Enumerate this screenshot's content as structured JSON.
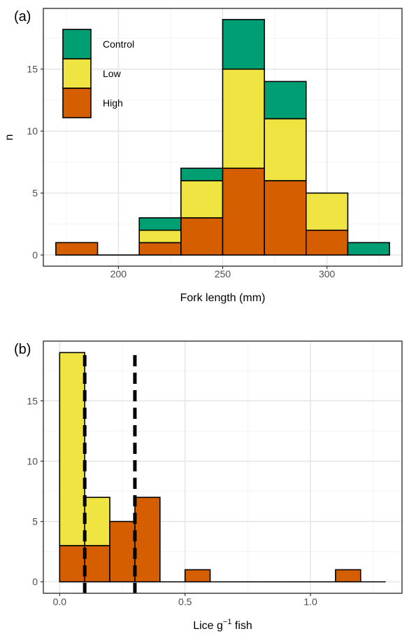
{
  "colors": {
    "Control": "#009E73",
    "Low": "#F0E442",
    "High": "#D55E00"
  },
  "chart_data": [
    {
      "type": "bar",
      "panel_label": "(a)",
      "xlabel": "Fork length (mm)",
      "ylabel": "n",
      "xlim": [
        164,
        336
      ],
      "ylim": [
        -0.9,
        19.9
      ],
      "xticks": [
        200,
        250,
        300
      ],
      "xticks_minor": [
        175,
        225,
        275,
        325
      ],
      "yticks": [
        0,
        5,
        10,
        15
      ],
      "yticks_minor": [
        2.5,
        7.5,
        12.5,
        17.5
      ],
      "legend": {
        "position": "top-left",
        "entries": [
          "Control",
          "Low",
          "High"
        ]
      },
      "bins": [
        {
          "x0": 170,
          "x1": 190,
          "High": 1,
          "Low": 0,
          "Control": 0
        },
        {
          "x0": 190,
          "x1": 210,
          "High": 0,
          "Low": 0,
          "Control": 0
        },
        {
          "x0": 210,
          "x1": 230,
          "High": 1,
          "Low": 1,
          "Control": 1
        },
        {
          "x0": 230,
          "x1": 250,
          "High": 3,
          "Low": 3,
          "Control": 1
        },
        {
          "x0": 250,
          "x1": 270,
          "High": 7,
          "Low": 8,
          "Control": 4
        },
        {
          "x0": 270,
          "x1": 290,
          "High": 6,
          "Low": 5,
          "Control": 3
        },
        {
          "x0": 290,
          "x1": 310,
          "High": 2,
          "Low": 3,
          "Control": 0
        },
        {
          "x0": 310,
          "x1": 330,
          "High": 0,
          "Low": 0,
          "Control": 1
        }
      ]
    },
    {
      "type": "bar",
      "panel_label": "(b)",
      "xlabel": "Lice g",
      "xlabel_superscript": "−1",
      "xlabel_suffix": " fish",
      "ylabel": "",
      "xlim": [
        -0.065,
        1.365
      ],
      "ylim": [
        -0.95,
        19.95
      ],
      "xticks": [
        0.0,
        0.5,
        1.0
      ],
      "xtick_labels": [
        "0.0",
        "0.5",
        "1.0"
      ],
      "xticks_minor": [
        0.25,
        0.75,
        1.25
      ],
      "yticks": [
        0,
        5,
        10,
        15
      ],
      "yticks_minor": [
        2.5,
        7.5,
        12.5,
        17.5
      ],
      "vlines": [
        0.1,
        0.3
      ],
      "bins": [
        {
          "x0": 0.0,
          "x1": 0.1,
          "High": 3,
          "Low": 16
        },
        {
          "x0": 0.1,
          "x1": 0.2,
          "High": 3,
          "Low": 4
        },
        {
          "x0": 0.2,
          "x1": 0.3,
          "High": 5,
          "Low": 0
        },
        {
          "x0": 0.3,
          "x1": 0.4,
          "High": 7,
          "Low": 0
        },
        {
          "x0": 0.4,
          "x1": 0.5,
          "High": 0,
          "Low": 0
        },
        {
          "x0": 0.5,
          "x1": 0.6,
          "High": 1,
          "Low": 0
        },
        {
          "x0": 0.6,
          "x1": 0.7,
          "High": 0,
          "Low": 0
        },
        {
          "x0": 0.7,
          "x1": 0.8,
          "High": 0,
          "Low": 0
        },
        {
          "x0": 0.8,
          "x1": 0.9,
          "High": 0,
          "Low": 0
        },
        {
          "x0": 0.9,
          "x1": 1.0,
          "High": 0,
          "Low": 0
        },
        {
          "x0": 1.0,
          "x1": 1.1,
          "High": 0,
          "Low": 0
        },
        {
          "x0": 1.1,
          "x1": 1.2,
          "High": 1,
          "Low": 0
        },
        {
          "x0": 1.2,
          "x1": 1.3,
          "High": 0,
          "Low": 0
        }
      ]
    }
  ]
}
